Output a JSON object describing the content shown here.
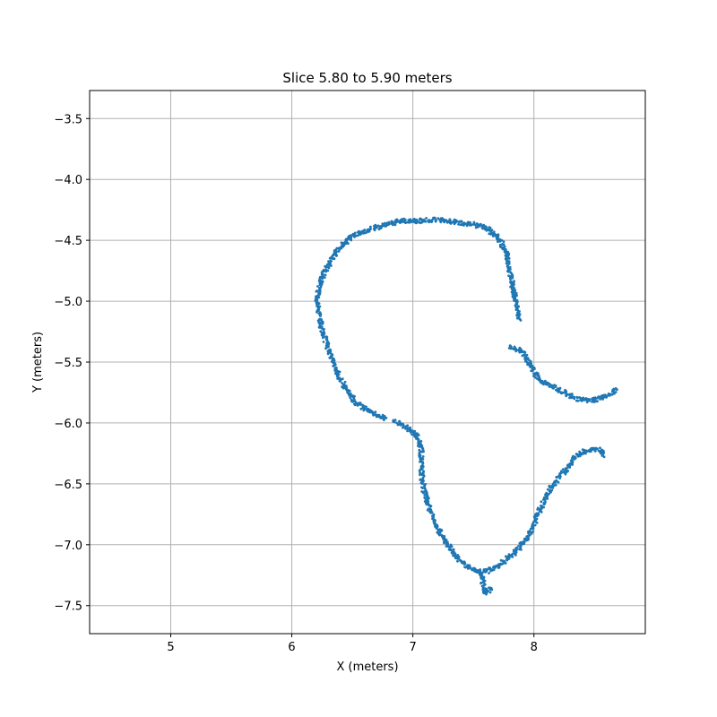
{
  "chart_data": {
    "type": "scatter",
    "title": "Slice 5.80 to 5.90 meters",
    "xlabel": "X (meters)",
    "ylabel": "Y (meters)",
    "xlim": [
      4.33,
      8.92
    ],
    "ylim": [
      -7.73,
      -3.27
    ],
    "xticks": [
      5,
      6,
      7,
      8
    ],
    "xtick_labels": [
      "5",
      "6",
      "7",
      "8"
    ],
    "yticks": [
      -3.5,
      -4.0,
      -4.5,
      -5.0,
      -5.5,
      -6.0,
      -6.5,
      -7.0,
      -7.5
    ],
    "ytick_labels": [
      "−3.5",
      "−4.0",
      "−4.5",
      "−5.0",
      "−5.5",
      "−6.0",
      "−6.5",
      "−7.0",
      "−7.5"
    ],
    "grid": true,
    "legend": "none",
    "marker_color": "#1f77b4",
    "segments": [
      {
        "name": "",
        "points": [
          [
            6.78,
            -5.96
          ],
          [
            6.7,
            -5.94
          ],
          [
            6.6,
            -5.88
          ],
          [
            6.52,
            -5.82
          ],
          [
            6.45,
            -5.73
          ],
          [
            6.38,
            -5.6
          ],
          [
            6.32,
            -5.45
          ],
          [
            6.27,
            -5.3
          ],
          [
            6.23,
            -5.15
          ],
          [
            6.21,
            -5.0
          ],
          [
            6.22,
            -4.9
          ],
          [
            6.26,
            -4.78
          ],
          [
            6.32,
            -4.67
          ],
          [
            6.4,
            -4.55
          ],
          [
            6.5,
            -4.47
          ],
          [
            6.62,
            -4.42
          ],
          [
            6.75,
            -4.38
          ],
          [
            6.9,
            -4.34
          ],
          [
            7.05,
            -4.34
          ],
          [
            7.2,
            -4.33
          ],
          [
            7.35,
            -4.35
          ],
          [
            7.5,
            -4.37
          ],
          [
            7.62,
            -4.4
          ],
          [
            7.72,
            -4.5
          ],
          [
            7.78,
            -4.62
          ],
          [
            7.8,
            -4.75
          ],
          [
            7.83,
            -4.9
          ],
          [
            7.86,
            -5.05
          ],
          [
            7.88,
            -5.15
          ]
        ]
      },
      {
        "name": "",
        "points": [
          [
            7.8,
            -5.37
          ],
          [
            7.88,
            -5.4
          ],
          [
            7.95,
            -5.48
          ],
          [
            8.0,
            -5.58
          ],
          [
            8.05,
            -5.65
          ],
          [
            8.15,
            -5.7
          ],
          [
            8.25,
            -5.75
          ],
          [
            8.35,
            -5.8
          ],
          [
            8.45,
            -5.82
          ],
          [
            8.55,
            -5.8
          ],
          [
            8.63,
            -5.76
          ],
          [
            8.68,
            -5.72
          ]
        ]
      },
      {
        "name": "",
        "points": [
          [
            6.85,
            -5.98
          ],
          [
            6.95,
            -6.04
          ],
          [
            7.03,
            -6.1
          ],
          [
            7.07,
            -6.2
          ],
          [
            7.07,
            -6.35
          ],
          [
            7.08,
            -6.5
          ],
          [
            7.12,
            -6.65
          ],
          [
            7.18,
            -6.8
          ],
          [
            7.25,
            -6.95
          ],
          [
            7.32,
            -7.05
          ],
          [
            7.4,
            -7.15
          ],
          [
            7.5,
            -7.21
          ],
          [
            7.6,
            -7.22
          ],
          [
            7.7,
            -7.18
          ],
          [
            7.8,
            -7.1
          ],
          [
            7.9,
            -7.0
          ],
          [
            7.97,
            -6.9
          ],
          [
            8.02,
            -6.78
          ],
          [
            8.08,
            -6.65
          ],
          [
            8.15,
            -6.52
          ],
          [
            8.25,
            -6.4
          ],
          [
            8.35,
            -6.27
          ],
          [
            8.45,
            -6.22
          ],
          [
            8.55,
            -6.22
          ],
          [
            8.57,
            -6.27
          ]
        ]
      },
      {
        "name": "",
        "points": [
          [
            7.55,
            -7.22
          ],
          [
            7.58,
            -7.3
          ],
          [
            7.6,
            -7.4
          ],
          [
            7.65,
            -7.35
          ]
        ]
      }
    ]
  }
}
